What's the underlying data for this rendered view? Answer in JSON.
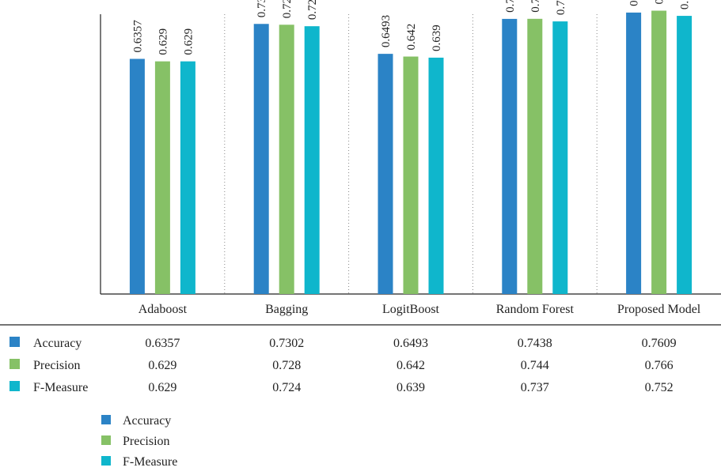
{
  "chart_data": {
    "type": "bar",
    "categories": [
      "Adaboost",
      "Bagging",
      "LogitBoost",
      "Random Forest",
      "Proposed Model"
    ],
    "series": [
      {
        "name": "Accuracy",
        "values": [
          0.6357,
          0.7302,
          0.6493,
          0.7438,
          0.7609
        ],
        "labels": [
          "0.6357",
          "0.7302",
          "0.6493",
          "0.7438",
          "0.7609"
        ],
        "color": "#2b83c6"
      },
      {
        "name": "Precision",
        "values": [
          0.629,
          0.728,
          0.642,
          0.744,
          0.766
        ],
        "labels": [
          "0.629",
          "0.728",
          "0.642",
          "0.744",
          "0.766"
        ],
        "color": "#86c166"
      },
      {
        "name": "F-Measure",
        "values": [
          0.629,
          0.724,
          0.639,
          0.737,
          0.752
        ],
        "labels": [
          "0.629",
          "0.724",
          "0.639",
          "0.737",
          "0.752"
        ],
        "color": "#0fb6cc"
      }
    ],
    "ylim": [
      0,
      1
    ],
    "grid": "dotted vertical separators between categories",
    "legend_placement": "bottom-left",
    "data_table": true
  }
}
